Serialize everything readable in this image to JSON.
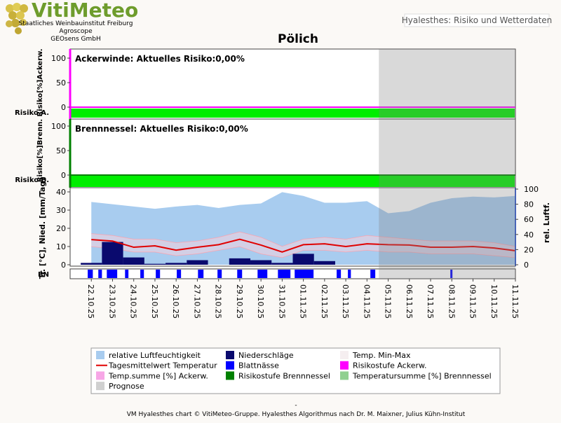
{
  "header": {
    "logo": "VitiMeteo",
    "org_lines": [
      "Staatliches Weinbauinstitut Freiburg",
      "Agroscope",
      "GEOsens GmbH"
    ],
    "badge": "Hyalesthes: Risiko und Wetterdaten",
    "title": "Pölich"
  },
  "chart_data": [
    {
      "type": "line",
      "title": "Ackerwinde: Aktuelles Risiko:0,00%",
      "y_label": "Risiko[%]Ackerw.",
      "band_label": "Risiko A.",
      "band_color": "#00ee00",
      "axis_color": "#ff00ff",
      "ylim": [
        0,
        100
      ],
      "yticks": [
        0,
        50,
        100
      ],
      "series": [
        {
          "color": "#ff00ff",
          "values": [
            0,
            0,
            0,
            0,
            0,
            0,
            0,
            0,
            0,
            0,
            0,
            0,
            0,
            0,
            0,
            0,
            0,
            0,
            0,
            0,
            0
          ]
        }
      ]
    },
    {
      "type": "line",
      "title": "Brennnessel: Aktuelles Risiko:0,00%",
      "y_label": "Risiko[%]Brenn.",
      "band_label": "Risiko B.",
      "band_color": "#00ee00",
      "axis_color": "#008000",
      "ylim": [
        0,
        100
      ],
      "yticks": [
        0,
        50,
        100
      ],
      "series": [
        {
          "color": "#008000",
          "values": [
            0,
            0,
            0,
            0,
            0,
            0,
            0,
            0,
            0,
            0,
            0,
            0,
            0,
            0,
            0,
            0,
            0,
            0,
            0,
            0,
            0
          ]
        }
      ]
    },
    {
      "type": "weather",
      "categories": [
        "22.10.25",
        "23.10.25",
        "24.10.25",
        "25.10.25",
        "26.10.25",
        "27.10.25",
        "28.10.25",
        "29.10.25",
        "30.10.25",
        "31.10.25",
        "01.11.25",
        "02.11.25",
        "03.11.25",
        "04.11.25",
        "05.11.25",
        "06.11.25",
        "07.11.25",
        "08.11.25",
        "09.11.25",
        "10.11.25",
        "11.11.25"
      ],
      "y_label": "Tr. [°C], Nied. [mm/Tag]",
      "y2_label": "rel. Luftf.",
      "ylim": [
        0,
        40
      ],
      "yticks": [
        0,
        10,
        20,
        30,
        40
      ],
      "y2lim": [
        0,
        100
      ],
      "y2ticks": [
        0,
        20,
        40,
        60,
        80,
        100
      ],
      "humidity": {
        "color": "#a8ccef",
        "axis": "y2",
        "values": [
          83,
          80,
          77,
          74,
          77,
          79,
          75,
          79,
          81,
          96,
          91,
          82,
          82,
          84,
          68,
          71,
          82,
          88,
          90,
          89,
          91
        ]
      },
      "temp_max": {
        "color": "#f6d2dc",
        "values": [
          17,
          16,
          14,
          14,
          12,
          13,
          15,
          18,
          15,
          10,
          14,
          15,
          14,
          16,
          15,
          14,
          13,
          13,
          13,
          12,
          10
        ]
      },
      "temp_min": {
        "values": [
          10,
          9,
          7,
          7,
          5,
          6,
          8,
          10,
          6,
          4,
          8,
          8,
          7,
          8,
          7,
          7,
          6,
          6,
          6,
          5,
          4
        ]
      },
      "temperature": {
        "color": "#e00000",
        "values": [
          13.8,
          13,
          9.6,
          10.4,
          8,
          9.6,
          11,
          14,
          10.8,
          7,
          11,
          11.5,
          10,
          11.5,
          11,
          10.8,
          9.6,
          9.6,
          10,
          9.2,
          7.7
        ]
      },
      "precipitation": {
        "color": "#0a0a6e",
        "values": [
          1,
          12.5,
          4,
          0.5,
          1,
          2.5,
          0,
          3.5,
          2.5,
          1,
          6,
          2,
          0,
          0,
          0,
          0,
          0,
          0,
          0,
          0,
          0
        ]
      },
      "leaf_wetness_label": "BN",
      "leaf_wetness_color": "#0000ff",
      "leaf_wetness": [
        [
          -0.17,
          0.07
        ],
        [
          0.33,
          0.5
        ],
        [
          0.73,
          1.22
        ],
        [
          1.59,
          1.75
        ],
        [
          2.31,
          2.48
        ],
        [
          3.04,
          3.24
        ],
        [
          4.03,
          4.23
        ],
        [
          5.03,
          5.29
        ],
        [
          5.95,
          6.15
        ],
        [
          6.88,
          7.11
        ],
        [
          7.84,
          8.3
        ],
        [
          8.8,
          9.39
        ],
        [
          9.59,
          10.48
        ],
        [
          11.57,
          11.77
        ],
        [
          12.1,
          12.24
        ],
        [
          13.16,
          13.39
        ],
        [
          16.93,
          17.03
        ]
      ],
      "prognose_start": 13.56
    }
  ],
  "legend": [
    {
      "name": "relative Luftfeuchtigkeit",
      "color": "#a8ccef"
    },
    {
      "name": "Niederschläge",
      "color": "#0a0a6e"
    },
    {
      "name": "Temp. Min-Max",
      "color": "#f5eef0"
    },
    {
      "name": "Tagesmittelwert Temperatur",
      "color": "#e00000"
    },
    {
      "name": "Blattnässe",
      "color": "#0000ff"
    },
    {
      "name": "Risikostufe Ackerw.",
      "color": "#ff00ff"
    },
    {
      "name": "Temp.summe [%] Ackerw.",
      "color": "#f7a6e6"
    },
    {
      "name": "Risikostufe Brennnessel",
      "color": "#008000"
    },
    {
      "name": "Temperatursumme [%] Brennnessel",
      "color": "#90d090"
    },
    {
      "name": "Prognose",
      "color": "#d0d0d0"
    }
  ],
  "footer": "VM Hyalesthes chart © VitiMeteo-Gruppe. Hyalesthes Algorithmus nach Dr. M. Maixner, Julius Kühn-Institut"
}
